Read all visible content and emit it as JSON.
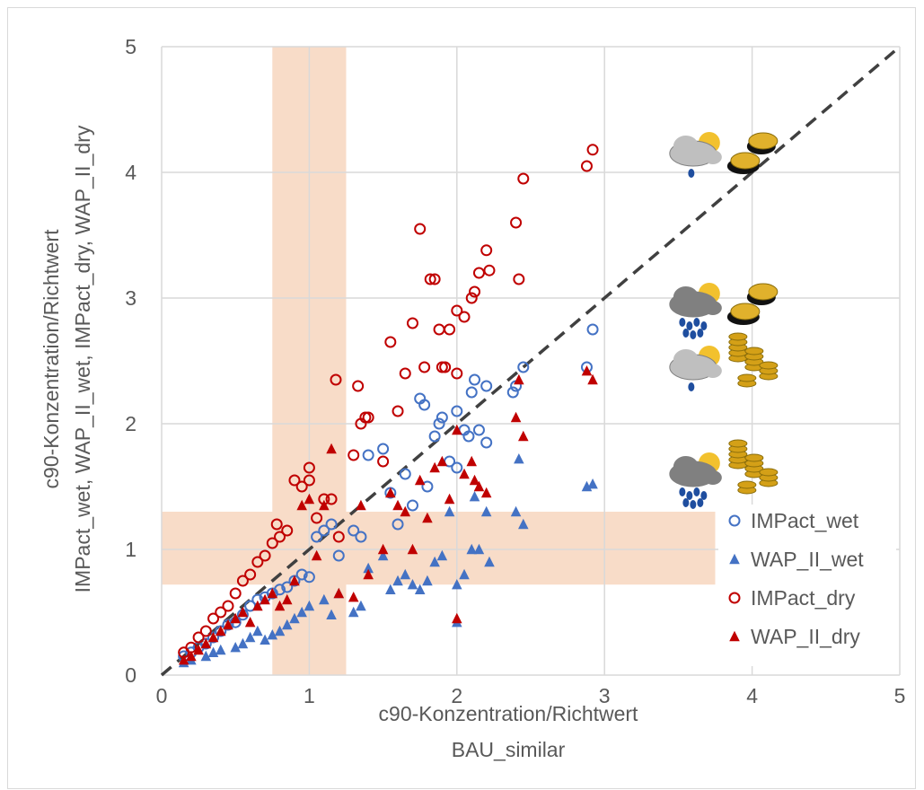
{
  "chart_data": {
    "type": "scatter",
    "title": "",
    "xlabel_lines": [
      "c90-Konzentration/Richtwert",
      "BAU_similar"
    ],
    "ylabel_lines": [
      "c90-Konzentration/Richtwert",
      "IMPact_wet, WAP_II_wet, IMPact_dry, WAP_II_dry"
    ],
    "xlim": [
      0,
      5
    ],
    "ylim": [
      0,
      5
    ],
    "xticks": [
      "0",
      "1",
      "2",
      "3",
      "4",
      "5"
    ],
    "yticks": [
      "0",
      "1",
      "2",
      "3",
      "4",
      "5"
    ],
    "grid": true,
    "legend_position": "bottom-right",
    "reference_line": {
      "type": "identity",
      "style": "dashed",
      "color": "#404040"
    },
    "shaded_bands": [
      {
        "axis": "x",
        "range": [
          0.75,
          1.25
        ],
        "color": "#f8dcc8"
      },
      {
        "axis": "y",
        "range": [
          0.72,
          1.3
        ],
        "x_extent": [
          0,
          3.75
        ],
        "color": "#f8dcc8"
      }
    ],
    "icons": [
      {
        "name": "light-rain-few-coins-icon",
        "x": 3.6,
        "y": 4.15
      },
      {
        "name": "heavy-rain-few-coins-icon",
        "x": 3.6,
        "y": 2.95
      },
      {
        "name": "light-rain-many-coins-icon",
        "x": 3.6,
        "y": 2.45
      },
      {
        "name": "heavy-rain-many-coins-icon",
        "x": 3.6,
        "y": 1.6
      }
    ],
    "series": [
      {
        "name": "IMPact_wet",
        "marker": "circle-open",
        "color": "#4472c4",
        "points": [
          [
            0.15,
            0.15
          ],
          [
            0.2,
            0.18
          ],
          [
            0.25,
            0.22
          ],
          [
            0.3,
            0.25
          ],
          [
            0.35,
            0.3
          ],
          [
            0.4,
            0.35
          ],
          [
            0.45,
            0.4
          ],
          [
            0.5,
            0.42
          ],
          [
            0.55,
            0.48
          ],
          [
            0.6,
            0.55
          ],
          [
            0.65,
            0.6
          ],
          [
            0.7,
            0.62
          ],
          [
            0.75,
            0.65
          ],
          [
            0.8,
            0.68
          ],
          [
            0.85,
            0.7
          ],
          [
            0.9,
            0.75
          ],
          [
            0.95,
            0.8
          ],
          [
            1.0,
            0.78
          ],
          [
            1.05,
            1.1
          ],
          [
            1.1,
            1.15
          ],
          [
            1.15,
            1.2
          ],
          [
            1.2,
            0.95
          ],
          [
            1.3,
            1.15
          ],
          [
            1.35,
            1.1
          ],
          [
            1.4,
            1.75
          ],
          [
            1.5,
            1.8
          ],
          [
            1.55,
            1.45
          ],
          [
            1.6,
            1.2
          ],
          [
            1.65,
            1.6
          ],
          [
            1.7,
            1.35
          ],
          [
            1.75,
            2.2
          ],
          [
            1.78,
            2.15
          ],
          [
            1.8,
            1.5
          ],
          [
            1.85,
            1.9
          ],
          [
            1.88,
            2.0
          ],
          [
            1.9,
            2.05
          ],
          [
            1.95,
            1.7
          ],
          [
            2.0,
            1.65
          ],
          [
            2.0,
            2.1
          ],
          [
            2.05,
            1.95
          ],
          [
            2.08,
            1.9
          ],
          [
            2.1,
            2.25
          ],
          [
            2.12,
            2.35
          ],
          [
            2.15,
            1.95
          ],
          [
            2.2,
            2.3
          ],
          [
            2.2,
            1.85
          ],
          [
            2.38,
            2.25
          ],
          [
            2.4,
            2.3
          ],
          [
            2.45,
            2.45
          ],
          [
            2.88,
            2.45
          ],
          [
            2.92,
            2.75
          ]
        ]
      },
      {
        "name": "WAP_II_wet",
        "marker": "triangle-filled",
        "color": "#4472c4",
        "points": [
          [
            0.15,
            0.1
          ],
          [
            0.2,
            0.12
          ],
          [
            0.3,
            0.15
          ],
          [
            0.35,
            0.18
          ],
          [
            0.4,
            0.2
          ],
          [
            0.5,
            0.22
          ],
          [
            0.55,
            0.25
          ],
          [
            0.6,
            0.3
          ],
          [
            0.65,
            0.35
          ],
          [
            0.7,
            0.28
          ],
          [
            0.75,
            0.32
          ],
          [
            0.8,
            0.35
          ],
          [
            0.85,
            0.4
          ],
          [
            0.9,
            0.45
          ],
          [
            0.95,
            0.5
          ],
          [
            1.0,
            0.55
          ],
          [
            1.1,
            0.6
          ],
          [
            1.15,
            0.48
          ],
          [
            1.2,
            0.65
          ],
          [
            1.3,
            0.5
          ],
          [
            1.35,
            0.55
          ],
          [
            1.4,
            0.85
          ],
          [
            1.5,
            0.95
          ],
          [
            1.55,
            0.68
          ],
          [
            1.6,
            0.75
          ],
          [
            1.65,
            0.8
          ],
          [
            1.7,
            0.72
          ],
          [
            1.75,
            0.68
          ],
          [
            1.8,
            0.75
          ],
          [
            1.85,
            0.9
          ],
          [
            1.9,
            0.95
          ],
          [
            1.95,
            1.3
          ],
          [
            2.0,
            0.72
          ],
          [
            2.0,
            0.42
          ],
          [
            2.05,
            0.8
          ],
          [
            2.1,
            1.0
          ],
          [
            2.12,
            1.42
          ],
          [
            2.15,
            1.0
          ],
          [
            2.2,
            1.3
          ],
          [
            2.22,
            0.9
          ],
          [
            2.4,
            1.3
          ],
          [
            2.42,
            1.72
          ],
          [
            2.45,
            1.2
          ],
          [
            2.88,
            1.5
          ],
          [
            2.92,
            1.52
          ]
        ]
      },
      {
        "name": "IMPact_dry",
        "marker": "circle-open",
        "color": "#c00000",
        "points": [
          [
            0.15,
            0.18
          ],
          [
            0.2,
            0.22
          ],
          [
            0.25,
            0.3
          ],
          [
            0.3,
            0.35
          ],
          [
            0.35,
            0.45
          ],
          [
            0.4,
            0.5
          ],
          [
            0.45,
            0.55
          ],
          [
            0.5,
            0.65
          ],
          [
            0.55,
            0.75
          ],
          [
            0.6,
            0.8
          ],
          [
            0.65,
            0.9
          ],
          [
            0.7,
            0.95
          ],
          [
            0.75,
            1.05
          ],
          [
            0.78,
            1.2
          ],
          [
            0.8,
            1.1
          ],
          [
            0.85,
            1.15
          ],
          [
            0.9,
            1.55
          ],
          [
            0.95,
            1.5
          ],
          [
            1.0,
            1.65
          ],
          [
            1.0,
            1.55
          ],
          [
            1.05,
            1.25
          ],
          [
            1.1,
            1.4
          ],
          [
            1.15,
            1.4
          ],
          [
            1.18,
            2.35
          ],
          [
            1.2,
            1.1
          ],
          [
            1.3,
            1.75
          ],
          [
            1.33,
            2.3
          ],
          [
            1.35,
            2.0
          ],
          [
            1.38,
            2.05
          ],
          [
            1.4,
            2.05
          ],
          [
            1.5,
            1.7
          ],
          [
            1.55,
            2.65
          ],
          [
            1.6,
            2.1
          ],
          [
            1.65,
            2.4
          ],
          [
            1.7,
            2.8
          ],
          [
            1.75,
            3.55
          ],
          [
            1.78,
            2.45
          ],
          [
            1.82,
            3.15
          ],
          [
            1.85,
            3.15
          ],
          [
            1.88,
            2.75
          ],
          [
            1.9,
            2.45
          ],
          [
            1.92,
            2.45
          ],
          [
            1.95,
            2.75
          ],
          [
            2.0,
            2.4
          ],
          [
            2.0,
            2.9
          ],
          [
            2.05,
            2.85
          ],
          [
            2.1,
            3.0
          ],
          [
            2.12,
            3.05
          ],
          [
            2.15,
            3.2
          ],
          [
            2.2,
            3.38
          ],
          [
            2.22,
            3.22
          ],
          [
            2.4,
            3.6
          ],
          [
            2.42,
            3.15
          ],
          [
            2.45,
            3.95
          ],
          [
            2.88,
            4.05
          ],
          [
            2.92,
            4.18
          ]
        ]
      },
      {
        "name": "WAP_II_dry",
        "marker": "triangle-filled",
        "color": "#c00000",
        "points": [
          [
            0.15,
            0.12
          ],
          [
            0.2,
            0.15
          ],
          [
            0.25,
            0.2
          ],
          [
            0.3,
            0.25
          ],
          [
            0.35,
            0.3
          ],
          [
            0.4,
            0.35
          ],
          [
            0.45,
            0.4
          ],
          [
            0.5,
            0.45
          ],
          [
            0.55,
            0.5
          ],
          [
            0.6,
            0.42
          ],
          [
            0.65,
            0.55
          ],
          [
            0.7,
            0.6
          ],
          [
            0.75,
            0.65
          ],
          [
            0.8,
            0.55
          ],
          [
            0.85,
            0.6
          ],
          [
            0.9,
            0.75
          ],
          [
            0.95,
            1.35
          ],
          [
            1.0,
            1.4
          ],
          [
            1.05,
            0.95
          ],
          [
            1.1,
            1.35
          ],
          [
            1.15,
            1.8
          ],
          [
            1.2,
            0.65
          ],
          [
            1.3,
            0.62
          ],
          [
            1.35,
            1.35
          ],
          [
            1.4,
            0.8
          ],
          [
            1.5,
            1.0
          ],
          [
            1.55,
            1.45
          ],
          [
            1.6,
            1.35
          ],
          [
            1.65,
            1.3
          ],
          [
            1.7,
            1.0
          ],
          [
            1.75,
            1.55
          ],
          [
            1.8,
            1.25
          ],
          [
            1.85,
            1.65
          ],
          [
            1.9,
            1.7
          ],
          [
            1.95,
            1.4
          ],
          [
            2.0,
            1.95
          ],
          [
            2.0,
            0.45
          ],
          [
            2.05,
            1.6
          ],
          [
            2.1,
            1.7
          ],
          [
            2.12,
            1.55
          ],
          [
            2.15,
            1.5
          ],
          [
            2.2,
            1.45
          ],
          [
            2.4,
            2.05
          ],
          [
            2.42,
            2.35
          ],
          [
            2.45,
            1.9
          ],
          [
            2.88,
            2.42
          ],
          [
            2.92,
            2.35
          ]
        ]
      }
    ]
  }
}
